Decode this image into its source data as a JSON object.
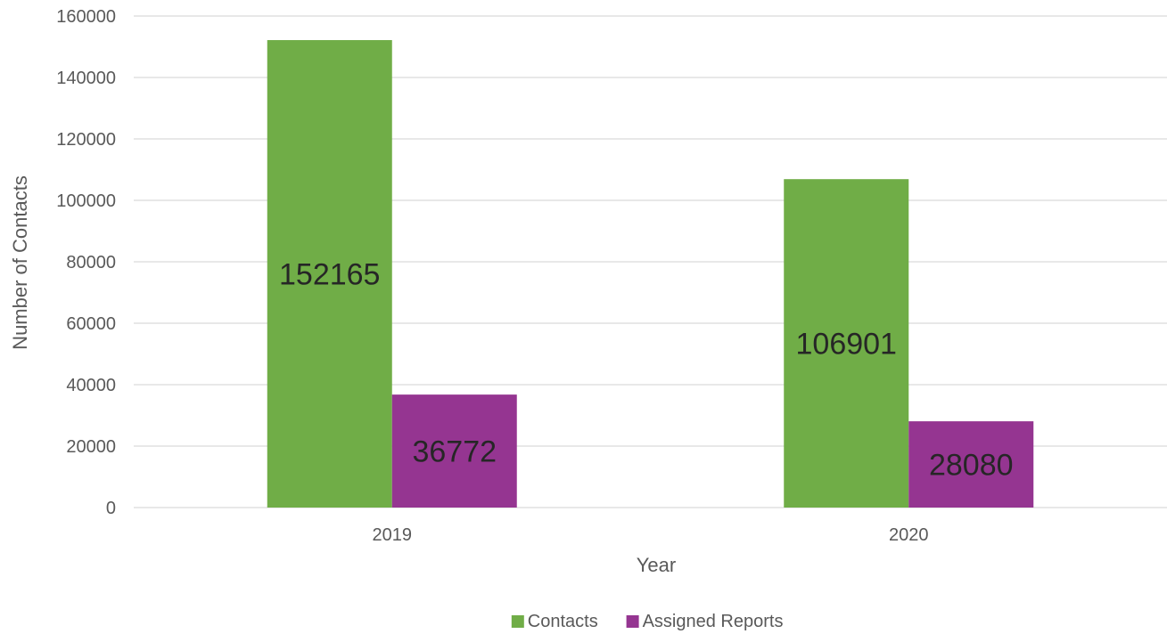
{
  "chart_data": {
    "type": "bar",
    "title": "",
    "xlabel": "Year",
    "ylabel": "Number of Contacts",
    "categories": [
      "2019",
      "2020"
    ],
    "series": [
      {
        "name": "Contacts",
        "values": [
          152165,
          106901
        ],
        "color": "#70ad47"
      },
      {
        "name": "Assigned Reports",
        "values": [
          36772,
          28080
        ],
        "color": "#953591"
      }
    ],
    "ylim": [
      0,
      160000
    ],
    "yticks": [
      0,
      20000,
      40000,
      60000,
      80000,
      100000,
      120000,
      140000,
      160000
    ],
    "grid": true,
    "legend_position": "bottom",
    "data_labels": true
  }
}
